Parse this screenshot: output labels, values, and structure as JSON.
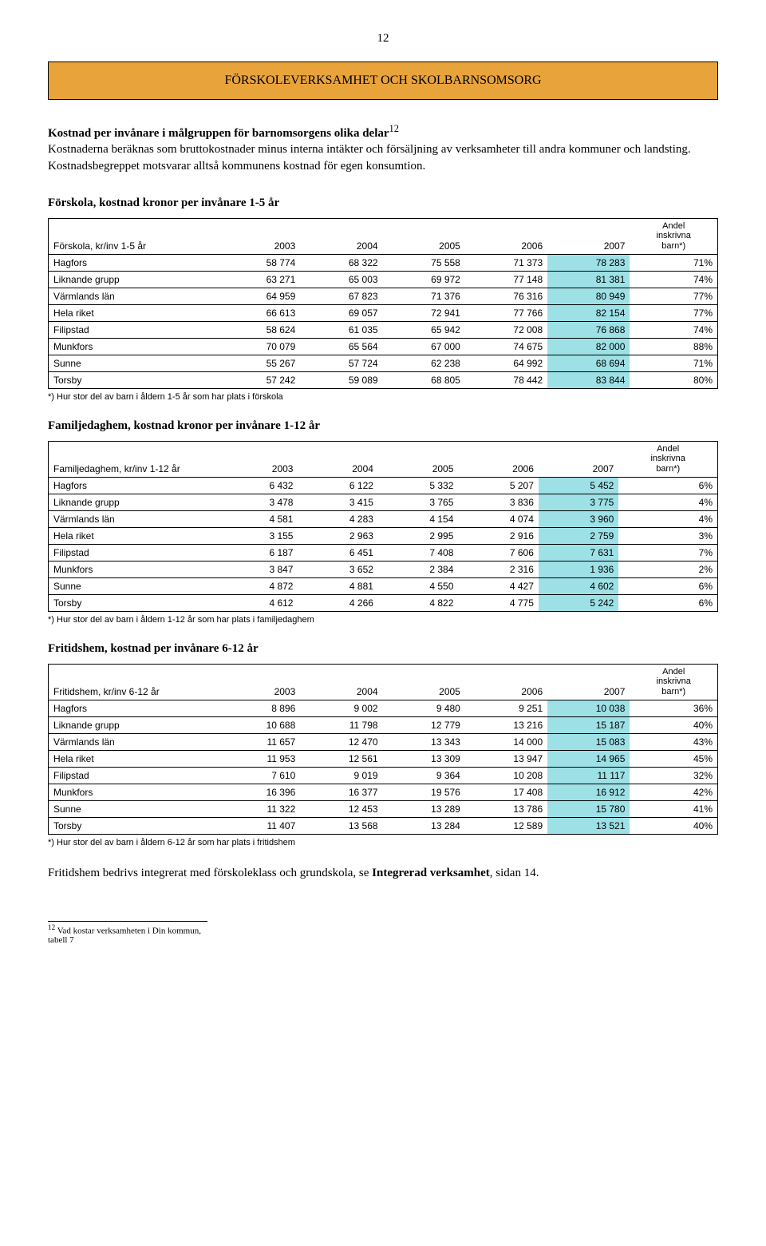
{
  "page_number": "12",
  "title": "FÖRSKOLEVERKSAMHET OCH SKOLBARNSOMSORG",
  "intro": {
    "heading": "Kostnad per invånare i målgruppen för barnomsorgens olika delar",
    "sup": "12",
    "body": "Kostnaderna beräknas som bruttokostnader minus interna intäkter och försäljning av verksamheter till andra kommuner och landsting. Kostnadsbegreppet motsvarar alltså kommunens kostnad för egen konsumtion."
  },
  "styles": {
    "highlight_color": "#9de1e6",
    "title_bg": "#e9a33b",
    "border_color": "#000000"
  },
  "columns": [
    "2003",
    "2004",
    "2005",
    "2006",
    "2007"
  ],
  "last_col_header": "Andel inskrivna barn*)",
  "tables": [
    {
      "heading": "Förskola, kostnad kronor per invånare 1-5 år",
      "row_title": "Förskola, kr/inv 1-5 år",
      "rows": [
        {
          "label": "Hagfors",
          "v": [
            "58 774",
            "68 322",
            "75 558",
            "71 373",
            "78 283",
            "71%"
          ]
        },
        {
          "label": "Liknande grupp",
          "v": [
            "63 271",
            "65 003",
            "69 972",
            "77 148",
            "81 381",
            "74%"
          ]
        },
        {
          "label": "Värmlands län",
          "v": [
            "64 959",
            "67 823",
            "71 376",
            "76 316",
            "80 949",
            "77%"
          ]
        },
        {
          "label": "Hela riket",
          "v": [
            "66 613",
            "69 057",
            "72 941",
            "77 766",
            "82 154",
            "77%"
          ]
        },
        {
          "label": "Filipstad",
          "v": [
            "58 624",
            "61 035",
            "65 942",
            "72 008",
            "76 868",
            "74%"
          ]
        },
        {
          "label": "Munkfors",
          "v": [
            "70 079",
            "65 564",
            "67 000",
            "74 675",
            "82 000",
            "88%"
          ]
        },
        {
          "label": "Sunne",
          "v": [
            "55 267",
            "57 724",
            "62 238",
            "64 992",
            "68 694",
            "71%"
          ]
        },
        {
          "label": "Torsby",
          "v": [
            "57 242",
            "59 089",
            "68 805",
            "78 442",
            "83 844",
            "80%"
          ]
        }
      ],
      "footnote": "*) Hur stor del av barn i åldern 1-5 år som har plats i förskola"
    },
    {
      "heading": "Familjedaghem, kostnad kronor per invånare 1-12 år",
      "row_title": "Familjedaghem, kr/inv 1-12 år",
      "rows": [
        {
          "label": "Hagfors",
          "v": [
            "6 432",
            "6 122",
            "5 332",
            "5 207",
            "5 452",
            "6%"
          ]
        },
        {
          "label": "Liknande grupp",
          "v": [
            "3 478",
            "3 415",
            "3 765",
            "3 836",
            "3 775",
            "4%"
          ]
        },
        {
          "label": "Värmlands län",
          "v": [
            "4 581",
            "4 283",
            "4 154",
            "4 074",
            "3 960",
            "4%"
          ]
        },
        {
          "label": "Hela riket",
          "v": [
            "3 155",
            "2 963",
            "2 995",
            "2 916",
            "2 759",
            "3%"
          ]
        },
        {
          "label": "Filipstad",
          "v": [
            "6 187",
            "6 451",
            "7 408",
            "7 606",
            "7 631",
            "7%"
          ]
        },
        {
          "label": "Munkfors",
          "v": [
            "3 847",
            "3 652",
            "2 384",
            "2 316",
            "1 936",
            "2%"
          ]
        },
        {
          "label": "Sunne",
          "v": [
            "4 872",
            "4 881",
            "4 550",
            "4 427",
            "4 602",
            "6%"
          ]
        },
        {
          "label": "Torsby",
          "v": [
            "4 612",
            "4 266",
            "4 822",
            "4 775",
            "5 242",
            "6%"
          ]
        }
      ],
      "footnote": "*) Hur stor del av barn i åldern 1-12 år som har plats i familjedaghem"
    },
    {
      "heading": "Fritidshem, kostnad per invånare 6-12 år",
      "row_title": "Fritidshem, kr/inv 6-12 år",
      "rows": [
        {
          "label": "Hagfors",
          "v": [
            "8 896",
            "9 002",
            "9 480",
            "9 251",
            "10 038",
            "36%"
          ]
        },
        {
          "label": "Liknande grupp",
          "v": [
            "10 688",
            "11 798",
            "12 779",
            "13 216",
            "15 187",
            "40%"
          ]
        },
        {
          "label": "Värmlands län",
          "v": [
            "11 657",
            "12 470",
            "13 343",
            "14 000",
            "15 083",
            "43%"
          ]
        },
        {
          "label": "Hela riket",
          "v": [
            "11 953",
            "12 561",
            "13 309",
            "13 947",
            "14 965",
            "45%"
          ]
        },
        {
          "label": "Filipstad",
          "v": [
            "7 610",
            "9 019",
            "9 364",
            "10 208",
            "11 117",
            "32%"
          ]
        },
        {
          "label": "Munkfors",
          "v": [
            "16 396",
            "16 377",
            "19 576",
            "17 408",
            "16 912",
            "42%"
          ]
        },
        {
          "label": "Sunne",
          "v": [
            "11 322",
            "12 453",
            "13 289",
            "13 786",
            "15 780",
            "41%"
          ]
        },
        {
          "label": "Torsby",
          "v": [
            "11 407",
            "13 568",
            "13 284",
            "12 589",
            "13 521",
            "40%"
          ]
        }
      ],
      "footnote": "*) Hur stor del av barn i åldern 6-12 år som har plats i fritidshem"
    }
  ],
  "closing": {
    "text_before": "Fritidshem bedrivs integrerat med förskoleklass och grundskola, se ",
    "bold": "Integrerad verksamhet",
    "text_after": ", sidan 14."
  },
  "bottom_ref": {
    "sup": "12",
    "text": " Vad kostar verksamheten i Din kommun, tabell 7"
  }
}
